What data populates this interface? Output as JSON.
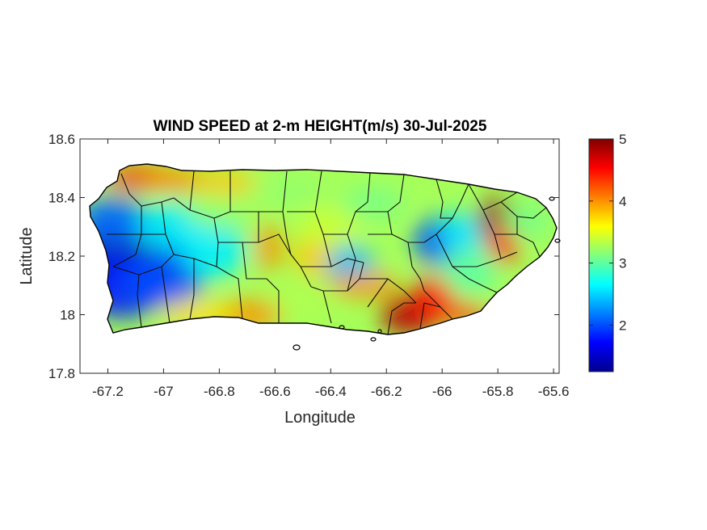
{
  "figure": {
    "title": "WIND SPEED at 2-m HEIGHT(m/s) 30-Jul-2025"
  },
  "chart_data": {
    "type": "heatmap",
    "title": "WIND SPEED at 2-m HEIGHT(m/s) 30-Jul-2025",
    "xlabel": "Longitude",
    "ylabel": "Latitude",
    "xlim": [
      -67.3,
      -65.58
    ],
    "ylim": [
      17.8,
      18.6
    ],
    "xticks": [
      -67.2,
      -67,
      -66.8,
      -66.6,
      -66.4,
      -66.2,
      -66,
      -65.8,
      -65.6
    ],
    "xtick_labels": [
      "-67.2",
      "-67",
      "-66.8",
      "-66.6",
      "-66.4",
      "-66.2",
      "-66",
      "-65.8",
      "-65.6"
    ],
    "yticks": [
      17.8,
      18,
      18.2,
      18.4,
      18.6
    ],
    "ytick_labels": [
      "17.8",
      "18",
      "18.2",
      "18.4",
      "18.6"
    ],
    "colorbar": {
      "colormap": "jet",
      "clim": [
        1.25,
        5.0
      ],
      "ticks": [
        2,
        3,
        4,
        5
      ],
      "tick_labels": [
        "2",
        "3",
        "4",
        "5"
      ]
    },
    "notable_values": [
      {
        "lon": -67.1,
        "lat": 18.2,
        "speed": 1.3
      },
      {
        "lon": -67.1,
        "lat": 18.05,
        "speed": 1.8
      },
      {
        "lon": -66.97,
        "lat": 18.22,
        "speed": 2.2
      },
      {
        "lon": -66.83,
        "lat": 18.25,
        "speed": 2.7
      },
      {
        "lon": -66.33,
        "lat": 18.18,
        "speed": 2.3
      },
      {
        "lon": -66.12,
        "lat": 18.0,
        "speed": 4.7
      },
      {
        "lon": -66.05,
        "lat": 18.03,
        "speed": 4.6
      },
      {
        "lon": -65.8,
        "lat": 18.33,
        "speed": 4.9
      },
      {
        "lon": -65.78,
        "lat": 18.26,
        "speed": 4.6
      },
      {
        "lon": -67.07,
        "lat": 18.48,
        "speed": 4.3
      },
      {
        "lon": -66.87,
        "lat": 18.45,
        "speed": 4.0
      },
      {
        "lon": -66.62,
        "lat": 18.22,
        "speed": 4.1
      },
      {
        "lon": -66.68,
        "lat": 17.99,
        "speed": 4.2
      },
      {
        "lon": -66.0,
        "lat": 18.25,
        "speed": 2.0
      },
      {
        "lon": -66.55,
        "lat": 18.42,
        "speed": 3.3
      },
      {
        "lon": -65.9,
        "lat": 18.1,
        "speed": 3.2
      }
    ]
  }
}
